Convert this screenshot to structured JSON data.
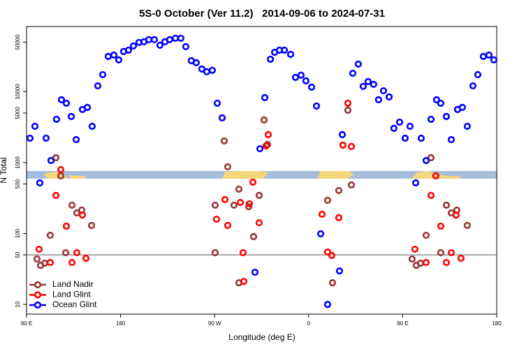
{
  "chart_data": {
    "type": "scatter",
    "title": "5S-0 October (Ver 11.2)   2014-09-06 to 2024-07-31",
    "x_label": "Longitude (deg E)",
    "y_label": "N Total",
    "xlim": [
      90,
      540
    ],
    "xticks": [
      {
        "value": 90,
        "label": "90 E"
      },
      180,
      {
        "value": 270,
        "label": "90 W"
      },
      {
        "value": 360,
        "label": "0"
      },
      {
        "value": 450,
        "label": "90 E"
      },
      {
        "value": 540,
        "label": "180"
      }
    ],
    "ylim": [
      7.3,
      83000
    ],
    "y_scale": "log",
    "yticks": [
      10,
      50,
      100,
      500,
      1000,
      5000,
      10000,
      50000
    ],
    "hline": 50,
    "legend": "lower left",
    "series": [
      {
        "name": "Land Nadir",
        "color": "#993333",
        "x": [
          100.0,
          103.4,
          107.4,
          112.7,
          118.1,
          122.8,
          127.4,
          133.5,
          138.1,
          142.8,
          152.2,
          270.5,
          270.5,
          279.2,
          282.5,
          288.5,
          293.2,
          293.2,
          302.6,
          307.3,
          312.6,
          317.3,
          320.6,
          378.1,
          382.8,
          388.8,
          397.5,
          400.9,
          459.0,
          463.0,
          467.0,
          472.4,
          477.1,
          481.7,
          486.4,
          491.8,
          496.5,
          501.8,
          511.8
        ],
        "values": [
          43.7,
          35.6,
          38.1,
          94.4,
          1170,
          650,
          53.6,
          251,
          195,
          214,
          130,
          251,
          53.6,
          2020,
          873,
          251,
          422,
          20.2,
          239,
          90.3,
          344,
          3990,
          1800,
          294,
          20.2,
          404,
          5480,
          484,
          43.7,
          35.6,
          38.1,
          94.4,
          1170,
          650,
          53.6,
          251,
          195,
          214,
          130
        ]
      },
      {
        "name": "Land Glint",
        "color": "#ff0000",
        "x": [
          102.0,
          112.7,
          118.1,
          122.8,
          128.1,
          133.5,
          138.1,
          143.5,
          146.8,
          271.8,
          279.9,
          282.5,
          294.6,
          297.9,
          297.2,
          303.3,
          306.6,
          312.6,
          321.3,
          319.3,
          372.8,
          378.1,
          382.1,
          388.8,
          392.8,
          397.5,
          400.9,
          461.7,
          472.4,
          477.1,
          481.7,
          486.4,
          491.8,
          496.5,
          501.1,
          505.8
        ],
        "values": [
          60.0,
          39.0,
          344,
          796,
          127,
          39.0,
          53.6,
          182,
          44.7,
          159,
          301,
          130,
          274,
          21.1,
          53.6,
          262,
          530,
          142,
          2480,
          1720,
          187,
          54.8,
          49.0,
          167,
          1760,
          6870,
          1690,
          60.0,
          39.0,
          344,
          650,
          127,
          39.0,
          53.6,
          182,
          44.7
        ]
      },
      {
        "name": "Ocean Glint",
        "color": "#0000ff",
        "x": [
          93.3,
          98.0,
          102.7,
          108.7,
          113.4,
          118.7,
          123.4,
          128.1,
          132.8,
          137.5,
          143.5,
          148.2,
          152.8,
          158.2,
          162.9,
          168.2,
          173.6,
          178.2,
          182.9,
          187.6,
          192.3,
          197.6,
          202.3,
          207.0,
          212.3,
          217.7,
          222.3,
          227.0,
          232.4,
          237.7,
          242.4,
          247.7,
          252.4,
          257.8,
          262.5,
          267.8,
          272.5,
          277.2,
          308.6,
          313.3,
          318.0,
          323.4,
          327.4,
          332.1,
          336.8,
          342.7,
          347.4,
          352.7,
          357.4,
          362.8,
          367.5,
          371.5,
          378.1,
          389.5,
          392.2,
          402.2,
          407.5,
          412.2,
          416.9,
          422.2,
          426.9,
          431.6,
          437.0,
          441.6,
          447.0,
          452.3,
          457.0,
          462.4,
          467.7,
          472.4,
          477.1,
          482.4,
          486.4,
          491.8,
          496.5,
          502.5,
          507.1,
          511.8,
          517.2,
          521.9,
          527.2,
          532.5,
          537.2
        ],
        "values": [
          2210,
          3250,
          518,
          2210,
          1070,
          4080,
          7700,
          6870,
          4470,
          2110,
          5610,
          6000,
          3250,
          12100,
          17400,
          31400,
          32900,
          28100,
          36900,
          38500,
          44200,
          49500,
          50600,
          54200,
          54200,
          45200,
          50600,
          54200,
          56700,
          56700,
          43200,
          27400,
          25600,
          20900,
          19100,
          20000,
          6870,
          4270,
          28.4,
          1570,
          8240,
          28700,
          36000,
          38500,
          38500,
          33600,
          15900,
          17100,
          14200,
          11600,
          6280,
          98.9,
          10,
          29.7,
          2480,
          18200,
          24500,
          11900,
          13900,
          12700,
          7700,
          10300,
          8430,
          3040,
          3720,
          2210,
          3250,
          518,
          2210,
          1070,
          4080,
          7700,
          6870,
          4470,
          2110,
          5610,
          6000,
          3250,
          12100,
          17400,
          31400,
          32900,
          28100
        ]
      }
    ]
  }
}
